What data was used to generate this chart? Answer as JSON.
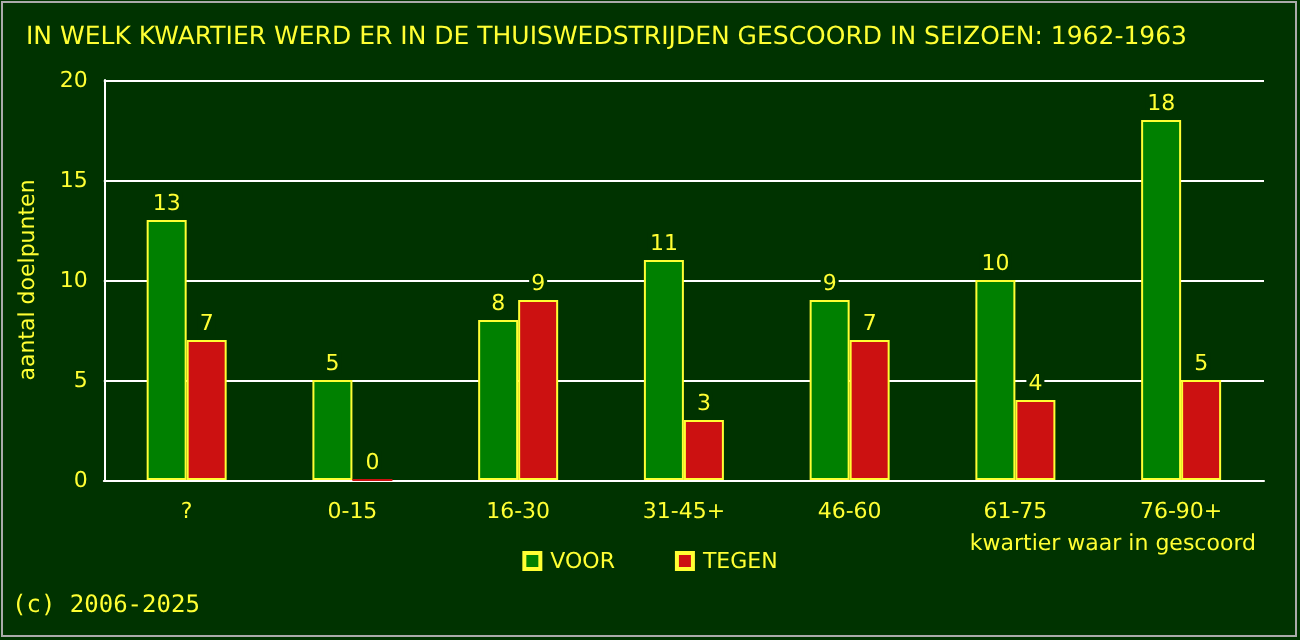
{
  "chart_data": {
    "type": "bar",
    "title": "IN WELK KWARTIER WERD ER IN DE THUISWEDSTRIJDEN GESCOORD IN SEIZOEN: 1962-1963",
    "xlabel": "kwartier waar in gescoord",
    "ylabel": "aantal doelpunten",
    "categories": [
      "?",
      "0-15",
      "16-30",
      "31-45+",
      "46-60",
      "61-75",
      "76-90+"
    ],
    "series": [
      {
        "name": "VOOR",
        "color": "#008000",
        "values": [
          13,
          5,
          8,
          11,
          9,
          10,
          18
        ]
      },
      {
        "name": "TEGEN",
        "color": "#cc1111",
        "values": [
          7,
          0,
          9,
          3,
          7,
          4,
          5
        ]
      }
    ],
    "ylim": [
      0,
      20
    ],
    "yticks": [
      0,
      5,
      10,
      15,
      20
    ],
    "grid": "y",
    "legend": "bottom",
    "data_labels": true,
    "annotations": [
      "(c) 2006-2025"
    ]
  }
}
